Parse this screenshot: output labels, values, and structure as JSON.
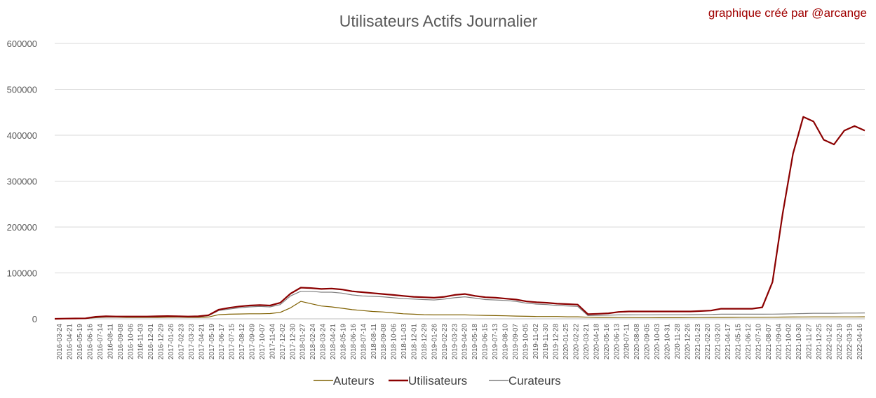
{
  "chart_data": {
    "type": "line",
    "title": "Utilisateurs Actifs Journalier",
    "credit": "graphique créé par @arcange",
    "xlabel": "",
    "ylabel": "",
    "ylim": [
      0,
      600000
    ],
    "yticks": [
      "0",
      "100000",
      "200000",
      "300000",
      "400000",
      "500000",
      "600000"
    ],
    "grid": true,
    "legend": "bottom",
    "x_tick_labels": [
      "2016-03-24",
      "2016-04-21",
      "2016-05-19",
      "2016-06-16",
      "2016-07-14",
      "2016-08-11",
      "2016-09-08",
      "2016-10-06",
      "2016-11-03",
      "2016-12-01",
      "2016-12-29",
      "2017-01-26",
      "2017-02-23",
      "2017-03-23",
      "2017-04-21",
      "2017-05-19",
      "2017-06-17",
      "2017-07-15",
      "2017-08-12",
      "2017-09-09",
      "2017-10-07",
      "2017-11-04",
      "2017-12-02",
      "2017-12-30",
      "2018-01-27",
      "2018-02-24",
      "2018-03-24",
      "2018-04-21",
      "2018-05-19",
      "2018-06-16",
      "2018-07-14",
      "2018-08-11",
      "2018-09-08",
      "2018-10-06",
      "2018-11-03",
      "2018-12-01",
      "2018-12-29",
      "2019-01-26",
      "2019-02-23",
      "2019-03-23",
      "2019-04-20",
      "2019-05-18",
      "2019-06-15",
      "2019-07-13",
      "2019-08-10",
      "2019-09-07",
      "2019-10-05",
      "2019-11-02",
      "2019-11-30",
      "2019-12-28",
      "2020-01-25",
      "2020-02-22",
      "2020-03-21",
      "2020-04-18",
      "2020-05-16",
      "2020-06-13",
      "2020-07-11",
      "2020-08-08",
      "2020-09-05",
      "2020-10-03",
      "2020-10-31",
      "2020-11-28",
      "2020-12-26",
      "2021-01-23",
      "2021-02-20",
      "2021-03-20",
      "2021-04-17",
      "2021-05-15",
      "2021-06-12",
      "2021-07-10",
      "2021-08-07",
      "2021-09-04",
      "2021-10-02",
      "2021-10-30",
      "2021-11-27",
      "2021-12-25",
      "2022-01-22",
      "2022-02-19",
      "2022-03-19",
      "2022-04-16"
    ],
    "series": [
      {
        "name": "Auteurs",
        "color": "#7f6000",
        "values": [
          0,
          500,
          700,
          900,
          2500,
          3500,
          3500,
          3000,
          3000,
          3000,
          3000,
          3500,
          3500,
          3000,
          3000,
          4000,
          9000,
          10000,
          10500,
          11000,
          11000,
          11500,
          14000,
          24000,
          38000,
          33000,
          28000,
          26000,
          23000,
          20000,
          18000,
          16000,
          15000,
          13000,
          11000,
          10000,
          9000,
          8500,
          8500,
          8500,
          8500,
          8000,
          7500,
          7000,
          6500,
          6000,
          5500,
          5000,
          5000,
          5000,
          4500,
          4500,
          3500,
          3000,
          3000,
          2800,
          2700,
          2600,
          2600,
          2500,
          2500,
          2500,
          2600,
          2800,
          3000,
          3000,
          3200,
          3300,
          3300,
          3400,
          3500,
          3800,
          4000,
          4100,
          4200,
          4200,
          4300,
          4300,
          4300,
          4400
        ]
      },
      {
        "name": "Utilisateurs",
        "color": "#8b0000",
        "values": [
          0,
          500,
          800,
          1000,
          4500,
          5500,
          5000,
          5000,
          5000,
          5000,
          5500,
          6000,
          5500,
          5000,
          5500,
          8000,
          20000,
          24000,
          27000,
          29000,
          30000,
          29000,
          35000,
          55000,
          68000,
          67000,
          65000,
          66000,
          64000,
          60000,
          58000,
          56000,
          54000,
          52000,
          50000,
          48000,
          47000,
          46000,
          48000,
          52000,
          54000,
          50000,
          47000,
          46000,
          44000,
          42000,
          38000,
          36000,
          35000,
          33000,
          32000,
          31000,
          10000,
          11000,
          12000,
          15000,
          16000,
          16000,
          16000,
          16000,
          16000,
          16000,
          16000,
          17000,
          18000,
          22000,
          22000,
          22000,
          22000,
          25000,
          80000,
          230000,
          360000,
          440000,
          430000,
          390000,
          380000,
          410000,
          420000,
          410000
        ]
      },
      {
        "name": "Curateurs",
        "color": "#7f7f7f",
        "values": [
          0,
          400,
          600,
          800,
          3000,
          4000,
          4000,
          4000,
          4000,
          4000,
          4500,
          5000,
          4500,
          4000,
          4500,
          7000,
          18000,
          21000,
          24000,
          26000,
          27000,
          26000,
          31000,
          50000,
          60000,
          60000,
          58000,
          58000,
          56000,
          52000,
          50000,
          49000,
          48000,
          46000,
          44000,
          43000,
          42000,
          41000,
          43000,
          46000,
          48000,
          45000,
          42000,
          41000,
          40000,
          38000,
          34000,
          32000,
          31000,
          29000,
          28000,
          27000,
          7000,
          7500,
          8000,
          8500,
          8600,
          8700,
          8700,
          8800,
          8800,
          8900,
          9000,
          9300,
          9500,
          10000,
          10000,
          10000,
          10000,
          10000,
          10300,
          10600,
          11000,
          11500,
          12000,
          12000,
          12000,
          12500,
          12500,
          12800
        ]
      }
    ]
  }
}
